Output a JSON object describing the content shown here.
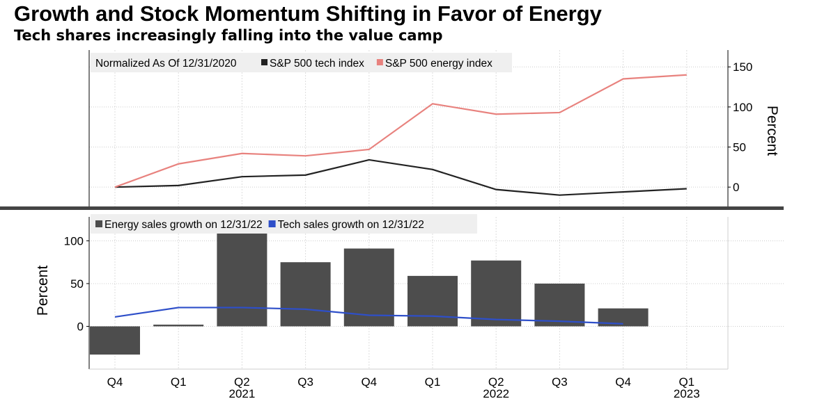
{
  "title": "Growth and Stock Momentum Shifting in Favor of Energy",
  "subtitle": "Tech shares increasingly falling into the value camp",
  "chart_data": [
    {
      "type": "line",
      "legend_note": "Normalized As Of 12/31/2020",
      "categories": [
        "Q4 2020",
        "Q1 2021",
        "Q2 2021",
        "Q3 2021",
        "Q4 2021",
        "Q1 2022",
        "Q2 2022",
        "Q3 2022",
        "Q4 2022",
        "Q1 2023"
      ],
      "series": [
        {
          "name": "S&P 500 tech index",
          "color": "#222222",
          "values": [
            0,
            2,
            13,
            15,
            34,
            22,
            -3,
            -10,
            -6,
            -2
          ]
        },
        {
          "name": "S&P 500 energy index",
          "color": "#e8827e",
          "values": [
            0,
            29,
            42,
            39,
            47,
            104,
            91,
            93,
            135,
            140
          ]
        }
      ],
      "ylabel": "Percent",
      "yaxis_side": "right",
      "yticks": [
        0,
        50,
        100,
        150
      ],
      "ylim": [
        -25,
        171
      ],
      "grid": true,
      "legend": "top-left"
    },
    {
      "type": "bar+line",
      "categories": [
        "Q4 2020",
        "Q1 2021",
        "Q2 2021",
        "Q3 2021",
        "Q4 2021",
        "Q1 2022",
        "Q2 2022",
        "Q3 2022",
        "Q4 2022",
        "Q1 2023"
      ],
      "xtick_labels": [
        "Q4",
        "Q1",
        "Q2",
        "Q3",
        "Q4",
        "Q1",
        "Q2",
        "Q3",
        "Q4",
        "Q1"
      ],
      "year_labels": [
        {
          "index": 2,
          "label": "2021"
        },
        {
          "index": 6,
          "label": "2022"
        },
        {
          "index": 9,
          "label": "2023"
        }
      ],
      "series": [
        {
          "name": "Energy sales growth on 12/31/22",
          "type": "bar",
          "color": "#4d4d4d",
          "values": [
            -33,
            2,
            115,
            75,
            91,
            59,
            77,
            50,
            21,
            null
          ]
        },
        {
          "name": "Tech sales growth on 12/31/22",
          "type": "line",
          "color": "#2e4fc9",
          "values": [
            11,
            22,
            22,
            20,
            13,
            12,
            8,
            6,
            3,
            null
          ]
        }
      ],
      "ylabel": "Percent",
      "yaxis_side": "left",
      "yticks": [
        0,
        50,
        100
      ],
      "ylim": [
        -50,
        128
      ],
      "grid": true,
      "legend": "top-left"
    }
  ]
}
